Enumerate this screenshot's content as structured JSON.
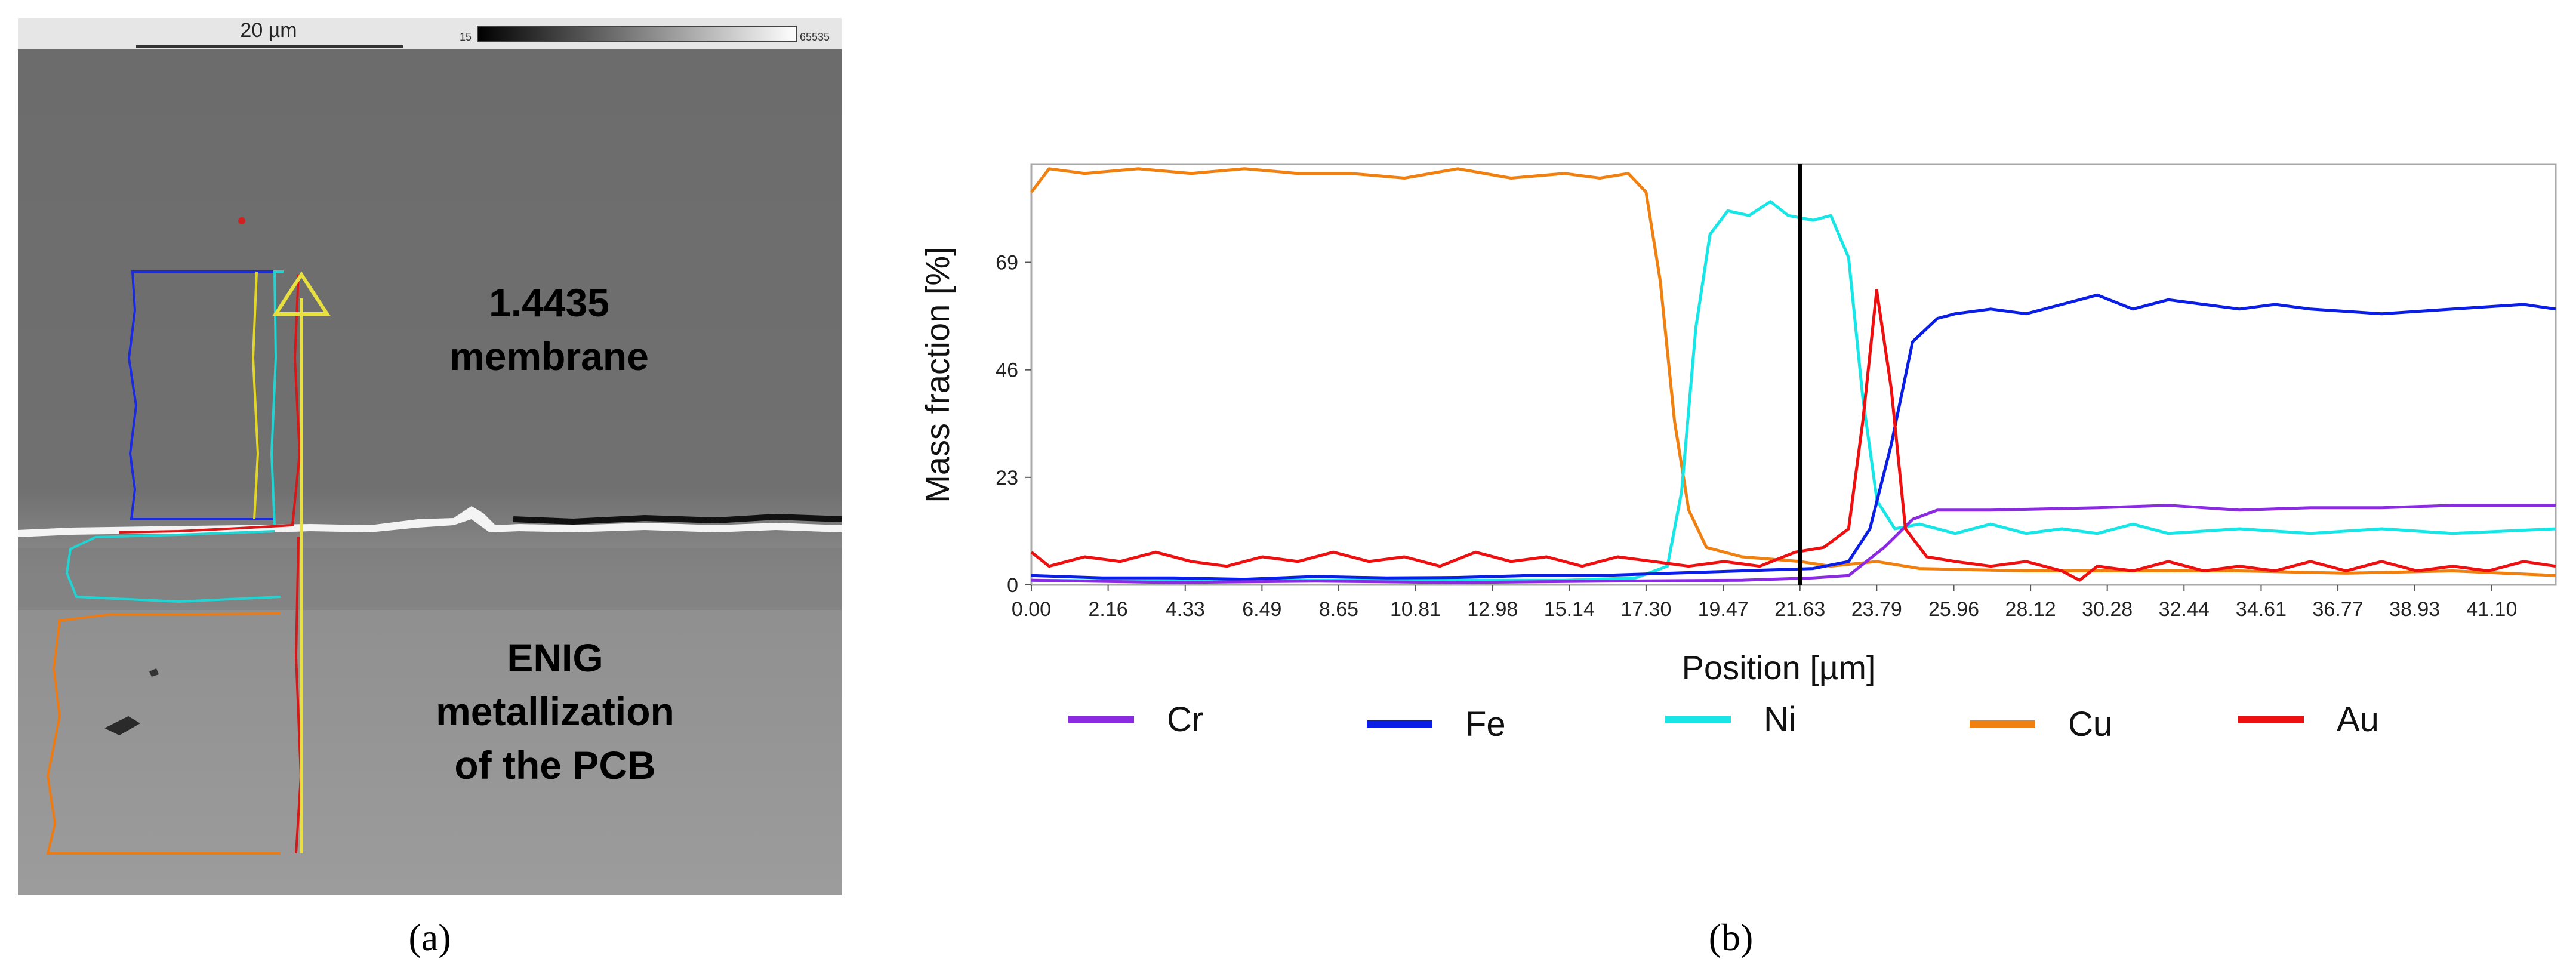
{
  "panel_a": {
    "caption": "(a)",
    "scale_bar_label": "20 µm",
    "grayscale_min": "15",
    "grayscale_max": "65535",
    "label_top": [
      "1.4435",
      "membrane"
    ],
    "label_bottom": [
      "ENIG",
      "metallization",
      "of the PCB"
    ]
  },
  "panel_b": {
    "caption": "(b)"
  },
  "colors": {
    "Cr": "#8a2be2",
    "Fe": "#0a1ee6",
    "Ni": "#18e6e6",
    "Cu": "#f08010",
    "Au": "#ee1010"
  },
  "chart_data": {
    "type": "line",
    "title": "",
    "xlabel": "Position [µm]",
    "ylabel": "Mass fraction [%]",
    "xlim": [
      0,
      42.9
    ],
    "ylim": [
      0,
      90
    ],
    "xticks": [
      "0.00",
      "2.16",
      "4.33",
      "6.49",
      "8.65",
      "10.81",
      "12.98",
      "15.14",
      "17.30",
      "19.47",
      "21.63",
      "23.79",
      "25.96",
      "28.12",
      "30.28",
      "32.44",
      "34.61",
      "36.77",
      "38.93",
      "41.10"
    ],
    "yticks": [
      "0",
      "23",
      "46",
      "69"
    ],
    "marker_line_x": 21.63,
    "legend_position": "bottom",
    "series": [
      {
        "name": "Cr",
        "points": [
          [
            0,
            1
          ],
          [
            4,
            0.5
          ],
          [
            8,
            0.8
          ],
          [
            12,
            0.5
          ],
          [
            16,
            0.8
          ],
          [
            20,
            1
          ],
          [
            22,
            1.5
          ],
          [
            23,
            2
          ],
          [
            24,
            8
          ],
          [
            24.8,
            14
          ],
          [
            25.5,
            16
          ],
          [
            27,
            16
          ],
          [
            30,
            16.5
          ],
          [
            32,
            17
          ],
          [
            34,
            16
          ],
          [
            36,
            16.5
          ],
          [
            38,
            16.5
          ],
          [
            40,
            17
          ],
          [
            42.9,
            17
          ]
        ]
      },
      {
        "name": "Fe",
        "points": [
          [
            0,
            2
          ],
          [
            2,
            1.5
          ],
          [
            4,
            1.5
          ],
          [
            6,
            1.2
          ],
          [
            8,
            1.8
          ],
          [
            10,
            1.5
          ],
          [
            12,
            1.6
          ],
          [
            14,
            2
          ],
          [
            16,
            2
          ],
          [
            18,
            2.5
          ],
          [
            20,
            3
          ],
          [
            22,
            3.5
          ],
          [
            23,
            5
          ],
          [
            23.6,
            12
          ],
          [
            24.2,
            30
          ],
          [
            24.8,
            52
          ],
          [
            25.5,
            57
          ],
          [
            26,
            58
          ],
          [
            27,
            59
          ],
          [
            28,
            58
          ],
          [
            29,
            60
          ],
          [
            30,
            62
          ],
          [
            31,
            59
          ],
          [
            32,
            61
          ],
          [
            33,
            60
          ],
          [
            34,
            59
          ],
          [
            35,
            60
          ],
          [
            36,
            59
          ],
          [
            38,
            58
          ],
          [
            40,
            59
          ],
          [
            42,
            60
          ],
          [
            42.9,
            59
          ]
        ]
      },
      {
        "name": "Ni",
        "points": [
          [
            0,
            1
          ],
          [
            3,
            0.8
          ],
          [
            6,
            1
          ],
          [
            9,
            1
          ],
          [
            12,
            1
          ],
          [
            15,
            1
          ],
          [
            17,
            1.5
          ],
          [
            17.9,
            4
          ],
          [
            18.3,
            20
          ],
          [
            18.7,
            55
          ],
          [
            19.1,
            75
          ],
          [
            19.6,
            80
          ],
          [
            20.2,
            79
          ],
          [
            20.8,
            82
          ],
          [
            21.3,
            79
          ],
          [
            22,
            78
          ],
          [
            22.5,
            79
          ],
          [
            23,
            70
          ],
          [
            23.4,
            40
          ],
          [
            23.8,
            18
          ],
          [
            24.3,
            12
          ],
          [
            25,
            13
          ],
          [
            26,
            11
          ],
          [
            27,
            13
          ],
          [
            28,
            11
          ],
          [
            29,
            12
          ],
          [
            30,
            11
          ],
          [
            31,
            13
          ],
          [
            32,
            11
          ],
          [
            34,
            12
          ],
          [
            36,
            11
          ],
          [
            38,
            12
          ],
          [
            40,
            11
          ],
          [
            42.9,
            12
          ]
        ]
      },
      {
        "name": "Cu",
        "points": [
          [
            0,
            84
          ],
          [
            0.5,
            89
          ],
          [
            1.5,
            88
          ],
          [
            3,
            89
          ],
          [
            4.5,
            88
          ],
          [
            6,
            89
          ],
          [
            7.5,
            88
          ],
          [
            9,
            88
          ],
          [
            10.5,
            87
          ],
          [
            12,
            89
          ],
          [
            13.5,
            87
          ],
          [
            15,
            88
          ],
          [
            16,
            87
          ],
          [
            16.8,
            88
          ],
          [
            17.3,
            84
          ],
          [
            17.7,
            65
          ],
          [
            18.1,
            35
          ],
          [
            18.5,
            16
          ],
          [
            19,
            8
          ],
          [
            20,
            6
          ],
          [
            21.63,
            5
          ],
          [
            22.5,
            4
          ],
          [
            23.79,
            5
          ],
          [
            25,
            3.5
          ],
          [
            28,
            3
          ],
          [
            31,
            3
          ],
          [
            34,
            3
          ],
          [
            37,
            2.5
          ],
          [
            40,
            3
          ],
          [
            42.9,
            2
          ]
        ]
      },
      {
        "name": "Au",
        "points": [
          [
            0,
            7
          ],
          [
            0.5,
            4
          ],
          [
            1.5,
            6
          ],
          [
            2.5,
            5
          ],
          [
            3.5,
            7
          ],
          [
            4.5,
            5
          ],
          [
            5.5,
            4
          ],
          [
            6.5,
            6
          ],
          [
            7.5,
            5
          ],
          [
            8.5,
            7
          ],
          [
            9.5,
            5
          ],
          [
            10.5,
            6
          ],
          [
            11.5,
            4
          ],
          [
            12.5,
            7
          ],
          [
            13.5,
            5
          ],
          [
            14.5,
            6
          ],
          [
            15.5,
            4
          ],
          [
            16.5,
            6
          ],
          [
            17.5,
            5
          ],
          [
            18.5,
            4
          ],
          [
            19.5,
            5
          ],
          [
            20.5,
            4
          ],
          [
            21.5,
            7
          ],
          [
            22.3,
            8
          ],
          [
            23,
            12
          ],
          [
            23.4,
            35
          ],
          [
            23.79,
            63
          ],
          [
            24.2,
            42
          ],
          [
            24.6,
            12
          ],
          [
            25.2,
            6
          ],
          [
            26,
            5
          ],
          [
            27,
            4
          ],
          [
            28,
            5
          ],
          [
            29,
            3
          ],
          [
            29.5,
            1
          ],
          [
            30,
            4
          ],
          [
            31,
            3
          ],
          [
            32,
            5
          ],
          [
            33,
            3
          ],
          [
            34,
            4
          ],
          [
            35,
            3
          ],
          [
            36,
            5
          ],
          [
            37,
            3
          ],
          [
            38,
            5
          ],
          [
            39,
            3
          ],
          [
            40,
            4
          ],
          [
            41,
            3
          ],
          [
            42,
            5
          ],
          [
            42.9,
            4
          ]
        ]
      }
    ]
  }
}
